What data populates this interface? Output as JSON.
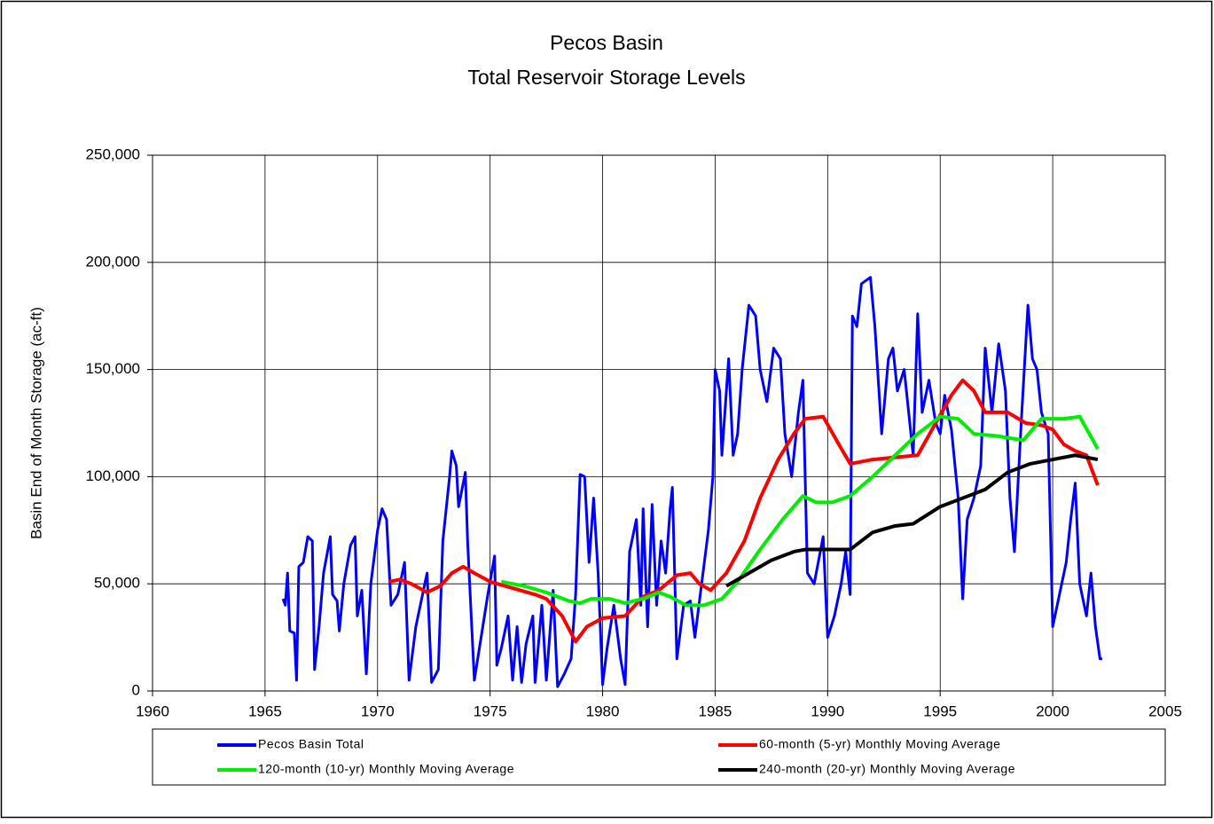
{
  "chart_data": {
    "type": "line",
    "title": "Pecos Basin",
    "subtitle": "Total Reservoir Storage Levels",
    "y_label": "Basin End of Month Storage (ac-ft)",
    "xlim": [
      1960,
      2005
    ],
    "xticks": [
      1960,
      1965,
      1970,
      1975,
      1980,
      1985,
      1990,
      1995,
      2000,
      2005
    ],
    "ylim": [
      0,
      250000
    ],
    "yticks": [
      0,
      {
        "value": 50000,
        "label": "50,000"
      },
      {
        "value": 100000,
        "label": "100,000"
      },
      {
        "value": 150000,
        "label": "150,000"
      },
      {
        "value": 200000,
        "label": "200,000"
      },
      {
        "value": 250000,
        "label": "250,000"
      }
    ],
    "grid": true,
    "legend": "bottom",
    "series": [
      {
        "name": "Pecos Basin Total",
        "color": "#0000ff",
        "x": [
          1965.8,
          1965.9,
          1966.0,
          1966.1,
          1966.3,
          1966.4,
          1966.5,
          1966.7,
          1966.9,
          1967.1,
          1967.2,
          1967.4,
          1967.6,
          1967.9,
          1968.0,
          1968.2,
          1968.3,
          1968.5,
          1968.8,
          1969.0,
          1969.1,
          1969.3,
          1969.5,
          1969.7,
          1970.0,
          1970.2,
          1970.4,
          1970.6,
          1970.9,
          1971.2,
          1971.4,
          1971.7,
          1971.9,
          1972.2,
          1972.4,
          1972.7,
          1972.9,
          1973.2,
          1973.3,
          1973.5,
          1973.6,
          1973.9,
          1974.0,
          1974.3,
          1974.6,
          1974.9,
          1975.2,
          1975.3,
          1975.5,
          1975.8,
          1976.0,
          1976.2,
          1976.4,
          1976.6,
          1976.9,
          1977.0,
          1977.3,
          1977.5,
          1977.8,
          1978.0,
          1978.3,
          1978.6,
          1978.8,
          1979.0,
          1979.2,
          1979.4,
          1979.6,
          1979.8,
          1980.0,
          1980.2,
          1980.5,
          1980.8,
          1981.0,
          1981.2,
          1981.5,
          1981.7,
          1981.8,
          1982.0,
          1982.2,
          1982.4,
          1982.6,
          1982.8,
          1983.0,
          1983.1,
          1983.3,
          1983.6,
          1983.9,
          1984.1,
          1984.4,
          1984.7,
          1984.9,
          1985.0,
          1985.2,
          1985.3,
          1985.6,
          1985.8,
          1986.0,
          1986.2,
          1986.5,
          1986.8,
          1987.0,
          1987.3,
          1987.6,
          1987.9,
          1988.1,
          1988.4,
          1988.7,
          1988.9,
          1989.1,
          1989.4,
          1989.8,
          1990.0,
          1990.3,
          1990.6,
          1990.8,
          1991.0,
          1991.1,
          1991.3,
          1991.5,
          1991.9,
          1992.1,
          1992.4,
          1992.7,
          1992.9,
          1993.1,
          1993.4,
          1993.6,
          1993.8,
          1994.0,
          1994.2,
          1994.5,
          1994.8,
          1995.0,
          1995.2,
          1995.5,
          1995.8,
          1996.0,
          1996.2,
          1996.5,
          1996.8,
          1997.0,
          1997.3,
          1997.6,
          1997.9,
          1998.1,
          1998.3,
          1998.6,
          1998.9,
          1999.1,
          1999.3,
          1999.5,
          1999.8,
          2000.0,
          2000.3,
          2000.6,
          2000.8,
          2001.0,
          2001.2,
          2001.5,
          2001.7,
          2001.9,
          2002.1,
          2002.2
        ],
        "values": [
          43000,
          40000,
          55000,
          28000,
          27000,
          5000,
          58000,
          60000,
          72000,
          70000,
          10000,
          30000,
          55000,
          72000,
          45000,
          42000,
          28000,
          50000,
          68000,
          72000,
          35000,
          47000,
          8000,
          50000,
          75000,
          85000,
          80000,
          40000,
          45000,
          60000,
          5000,
          30000,
          40000,
          55000,
          4000,
          10000,
          70000,
          100000,
          112000,
          105000,
          86000,
          102000,
          70000,
          5000,
          25000,
          45000,
          63000,
          12000,
          20000,
          35000,
          5000,
          30000,
          4000,
          22000,
          35000,
          4000,
          40000,
          5000,
          47000,
          2000,
          8000,
          15000,
          45000,
          101000,
          100000,
          60000,
          90000,
          55000,
          3000,
          20000,
          40000,
          15000,
          3000,
          65000,
          80000,
          40000,
          85000,
          30000,
          87000,
          40000,
          70000,
          55000,
          85000,
          95000,
          15000,
          40000,
          42000,
          25000,
          50000,
          75000,
          100000,
          150000,
          140000,
          110000,
          155000,
          110000,
          120000,
          150000,
          180000,
          175000,
          150000,
          135000,
          160000,
          155000,
          120000,
          100000,
          130000,
          145000,
          55000,
          50000,
          72000,
          25000,
          35000,
          50000,
          65000,
          45000,
          175000,
          170000,
          190000,
          193000,
          170000,
          120000,
          155000,
          160000,
          140000,
          150000,
          130000,
          110000,
          176000,
          130000,
          145000,
          125000,
          120000,
          138000,
          122000,
          90000,
          43000,
          80000,
          90000,
          105000,
          160000,
          130000,
          162000,
          140000,
          90000,
          65000,
          125000,
          180000,
          155000,
          150000,
          130000,
          120000,
          30000,
          45000,
          60000,
          80000,
          97000,
          50000,
          35000,
          55000,
          30000,
          15000,
          15000
        ]
      },
      {
        "name": "60-month (5-yr) Monthly Moving Average",
        "color": "#ff0000",
        "x": [
          1970.5,
          1971,
          1971.5,
          1972.2,
          1972.8,
          1973.3,
          1973.8,
          1974.3,
          1975,
          1976,
          1977,
          1977.5,
          1978.2,
          1978.8,
          1979.3,
          1980,
          1981,
          1981.8,
          1982.5,
          1983.3,
          1983.9,
          1984.3,
          1984.8,
          1985.5,
          1986.3,
          1987,
          1987.8,
          1988.5,
          1989,
          1989.8,
          1990.5,
          1991,
          1992,
          1993,
          1994,
          1994.8,
          1995.5,
          1996,
          1996.5,
          1997,
          1998,
          1998.8,
          1999.5,
          2000,
          2000.5,
          2001,
          2001.5,
          2002
        ],
        "values": [
          51000,
          52000,
          50000,
          46000,
          49000,
          55000,
          58000,
          55000,
          51000,
          48000,
          45000,
          43000,
          35000,
          23000,
          30000,
          34000,
          35000,
          44000,
          47000,
          54000,
          55000,
          50000,
          47000,
          55000,
          70000,
          90000,
          108000,
          120000,
          127000,
          128000,
          115000,
          106000,
          108000,
          109000,
          110000,
          125000,
          138000,
          145000,
          140000,
          130000,
          130000,
          125000,
          124000,
          122000,
          115000,
          112000,
          110000,
          96000
        ]
      },
      {
        "name": "120-month (10-yr) Monthly Moving Average",
        "color": "#00ee00",
        "x": [
          1975.5,
          1976.5,
          1977.5,
          1978.5,
          1979,
          1979.5,
          1980.3,
          1981,
          1981.8,
          1982.5,
          1983,
          1983.7,
          1984.5,
          1985.3,
          1986,
          1987,
          1988,
          1988.9,
          1989.5,
          1990.2,
          1991,
          1992,
          1993,
          1994,
          1995,
          1995.8,
          1996.5,
          1997.5,
          1998.7,
          1999.5,
          2000.5,
          2001.2,
          2002
        ],
        "values": [
          51000,
          49000,
          46000,
          42000,
          41000,
          43000,
          43000,
          41000,
          43000,
          46000,
          44000,
          40000,
          40000,
          43000,
          51000,
          66000,
          80000,
          91000,
          88000,
          88000,
          91000,
          100000,
          110000,
          120000,
          128000,
          127000,
          120000,
          119000,
          117000,
          127000,
          127000,
          128000,
          113000
        ]
      },
      {
        "name": "240-month (20-yr) Monthly Moving Average",
        "color": "#000000",
        "x": [
          1985.5,
          1986.5,
          1987.5,
          1988.5,
          1989,
          1990,
          1991,
          1992,
          1993,
          1993.8,
          1995,
          1996,
          1997,
          1998,
          1999,
          2000,
          2001,
          2002
        ],
        "values": [
          49000,
          55000,
          61000,
          65000,
          66000,
          66000,
          66000,
          74000,
          77000,
          78000,
          86000,
          90000,
          94000,
          102000,
          106000,
          108000,
          110000,
          108000
        ]
      }
    ]
  }
}
